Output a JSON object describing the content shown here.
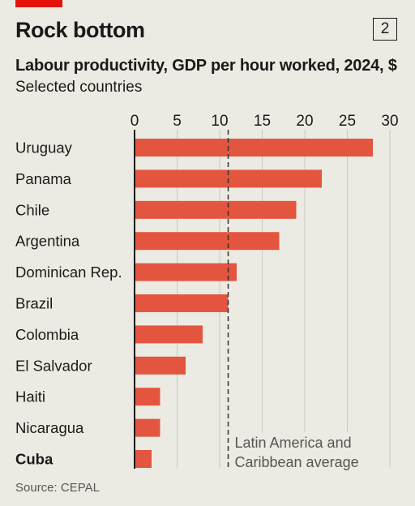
{
  "header": {
    "badge": "2",
    "title": "Rock bottom",
    "subtitle": "Labour productivity, GDP per hour worked, 2024, $",
    "subsubtitle": "Selected countries"
  },
  "footer": {
    "source": "Source: CEPAL"
  },
  "colors": {
    "bar": "#e3553f",
    "accent": "#e3120b",
    "background": "#ecebe3",
    "grid": "#c9c8c0"
  },
  "chart_data": {
    "type": "bar",
    "orientation": "horizontal",
    "categories": [
      "Uruguay",
      "Panama",
      "Chile",
      "Argentina",
      "Dominican Rep.",
      "Brazil",
      "Colombia",
      "El Salvador",
      "Haiti",
      "Nicaragua",
      "Cuba"
    ],
    "highlight_category": "Cuba",
    "values": [
      28,
      22,
      19,
      17,
      12,
      11,
      8,
      6,
      3,
      3,
      2
    ],
    "xlim": [
      0,
      30
    ],
    "xticks": [
      "0",
      "5",
      "10",
      "15",
      "20",
      "25",
      "30"
    ],
    "xtick_values": [
      0,
      5,
      10,
      15,
      20,
      25,
      30
    ],
    "grid": true,
    "reference_line": {
      "value": 11,
      "label_lines": [
        "Latin America and",
        "Caribbean average"
      ]
    }
  }
}
